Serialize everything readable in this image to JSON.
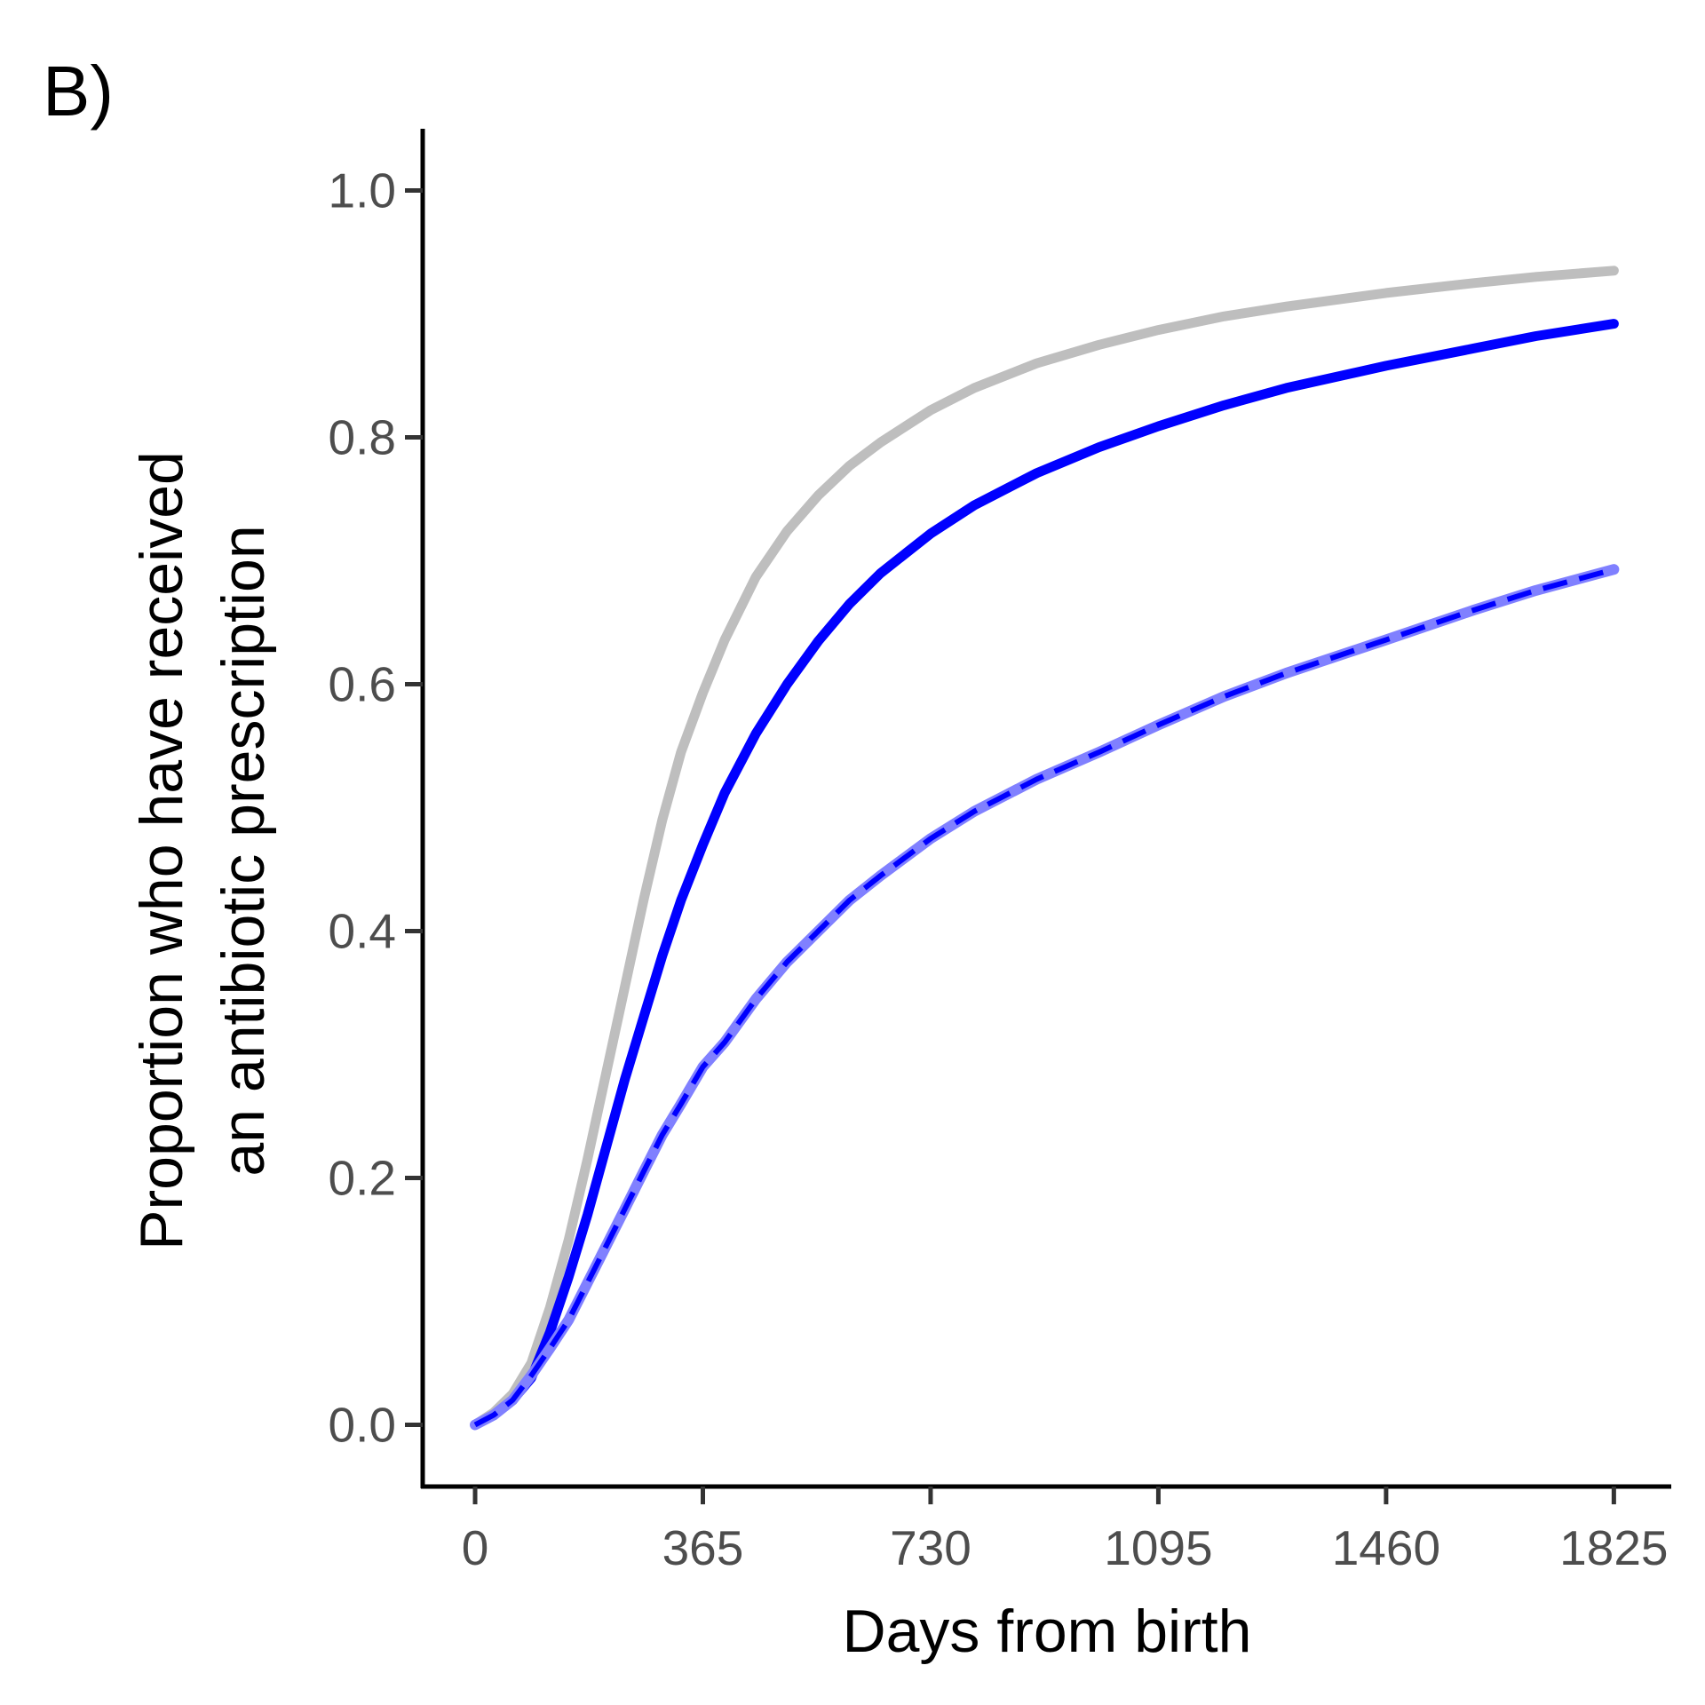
{
  "panel_label": "B)",
  "colors": {
    "gray_series": "#bebebe",
    "blue_series": "#0000ff",
    "blue_band": "#8080ff",
    "axis": "#000000",
    "tick_text": "#4d4d4d"
  },
  "chart_data": {
    "type": "line",
    "title": "",
    "xlabel": "Days from birth",
    "ylabel_lines": [
      "Proportion who have received",
      "an antibiotic prescription"
    ],
    "xlim": [
      -84,
      1917
    ],
    "ylim": [
      -0.05,
      1.05
    ],
    "x_ticks": [
      0,
      365,
      730,
      1095,
      1460,
      1825
    ],
    "y_ticks": [
      0.0,
      0.2,
      0.4,
      0.6,
      0.8,
      1.0
    ],
    "x_tick_labels": [
      "0",
      "365",
      "730",
      "1095",
      "1460",
      "1825"
    ],
    "y_tick_labels": [
      "0.0",
      "0.2",
      "0.4",
      "0.6",
      "0.8",
      "1.0"
    ],
    "grid": false,
    "legend": "none",
    "series": [
      {
        "color": "#bebebe",
        "style": "solid",
        "x": [
          0,
          30,
          60,
          90,
          120,
          150,
          180,
          210,
          240,
          270,
          300,
          330,
          365,
          400,
          450,
          500,
          550,
          600,
          650,
          730,
          800,
          900,
          1000,
          1095,
          1200,
          1300,
          1460,
          1600,
          1700,
          1825
        ],
        "y": [
          0.0,
          0.01,
          0.025,
          0.05,
          0.095,
          0.15,
          0.215,
          0.285,
          0.355,
          0.425,
          0.49,
          0.545,
          0.593,
          0.636,
          0.687,
          0.724,
          0.753,
          0.777,
          0.796,
          0.822,
          0.84,
          0.86,
          0.875,
          0.887,
          0.898,
          0.906,
          0.917,
          0.925,
          0.93,
          0.935
        ]
      },
      {
        "color": "#0000ff",
        "style": "solid",
        "x": [
          0,
          30,
          60,
          90,
          120,
          150,
          180,
          210,
          240,
          270,
          300,
          330,
          365,
          400,
          450,
          500,
          550,
          600,
          650,
          730,
          800,
          900,
          1000,
          1095,
          1200,
          1300,
          1460,
          1600,
          1700,
          1825
        ],
        "y": [
          0.0,
          0.008,
          0.02,
          0.038,
          0.075,
          0.12,
          0.17,
          0.225,
          0.28,
          0.33,
          0.38,
          0.425,
          0.47,
          0.512,
          0.56,
          0.6,
          0.635,
          0.665,
          0.69,
          0.722,
          0.745,
          0.771,
          0.792,
          0.809,
          0.826,
          0.84,
          0.858,
          0.872,
          0.882,
          0.892
        ]
      },
      {
        "color": "#0000ff",
        "style": "dashed",
        "x": [
          0,
          30,
          60,
          90,
          120,
          150,
          180,
          210,
          240,
          270,
          300,
          330,
          365,
          400,
          450,
          500,
          550,
          600,
          650,
          730,
          800,
          900,
          1000,
          1095,
          1200,
          1300,
          1460,
          1600,
          1700,
          1825
        ],
        "y": [
          0.0,
          0.008,
          0.02,
          0.04,
          0.062,
          0.085,
          0.115,
          0.145,
          0.175,
          0.205,
          0.235,
          0.26,
          0.29,
          0.31,
          0.345,
          0.375,
          0.4,
          0.425,
          0.445,
          0.475,
          0.497,
          0.523,
          0.545,
          0.567,
          0.59,
          0.609,
          0.636,
          0.66,
          0.676,
          0.693
        ]
      }
    ]
  }
}
